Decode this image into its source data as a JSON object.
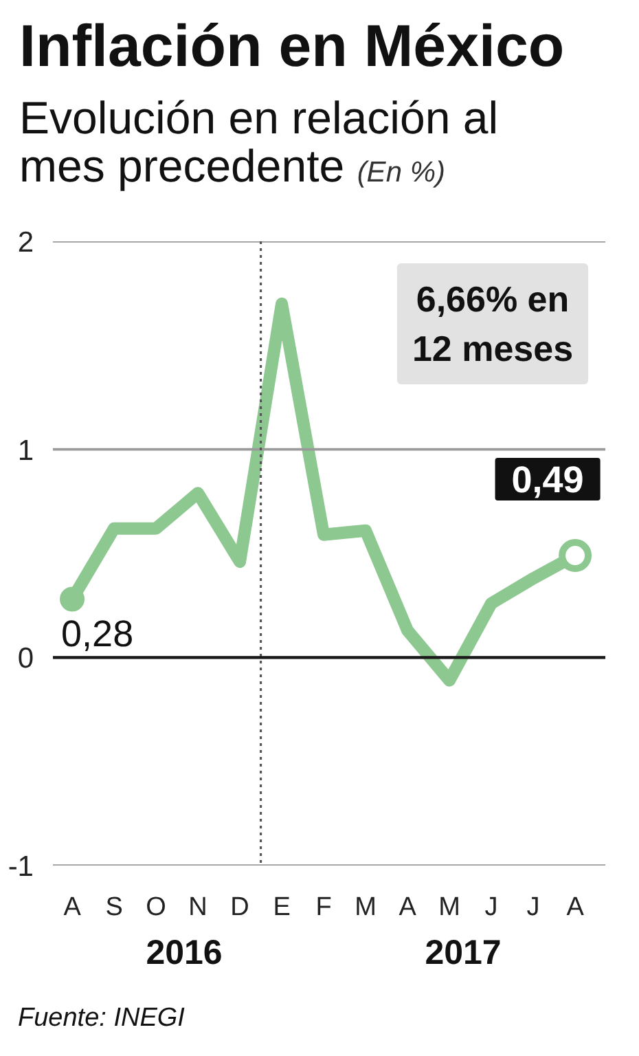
{
  "chart_data": {
    "type": "line",
    "title": "Inflación en México",
    "subtitle": "Evolución en relación al mes precedente",
    "ylabel": "(En %)",
    "categories": [
      "A",
      "S",
      "O",
      "N",
      "D",
      "E",
      "F",
      "M",
      "A",
      "M",
      "J",
      "J",
      "A"
    ],
    "series": [
      {
        "color": "#8dc891",
        "values": [
          0.28,
          0.62,
          0.62,
          0.79,
          0.46,
          1.7,
          0.59,
          0.61,
          0.13,
          -0.11,
          0.26,
          0.38,
          0.49
        ],
        "value_labels": [
          "0,28",
          null,
          null,
          null,
          null,
          null,
          null,
          null,
          null,
          null,
          null,
          null,
          "0,49"
        ]
      }
    ],
    "ylim": [
      -1,
      2
    ],
    "yticks": [
      -1,
      0,
      1,
      2
    ],
    "grid": "y",
    "line_style": "solid",
    "ref_lines": [
      {
        "axis": "x",
        "value": "E",
        "line_style": "dotted",
        "color": "#555555"
      },
      {
        "axis": "y",
        "value": 0,
        "color": "#1a1a1a"
      }
    ],
    "annotations": [
      "6,66% en 12 meses",
      "2016",
      "2017",
      "Fuente: INEGI"
    ]
  }
}
